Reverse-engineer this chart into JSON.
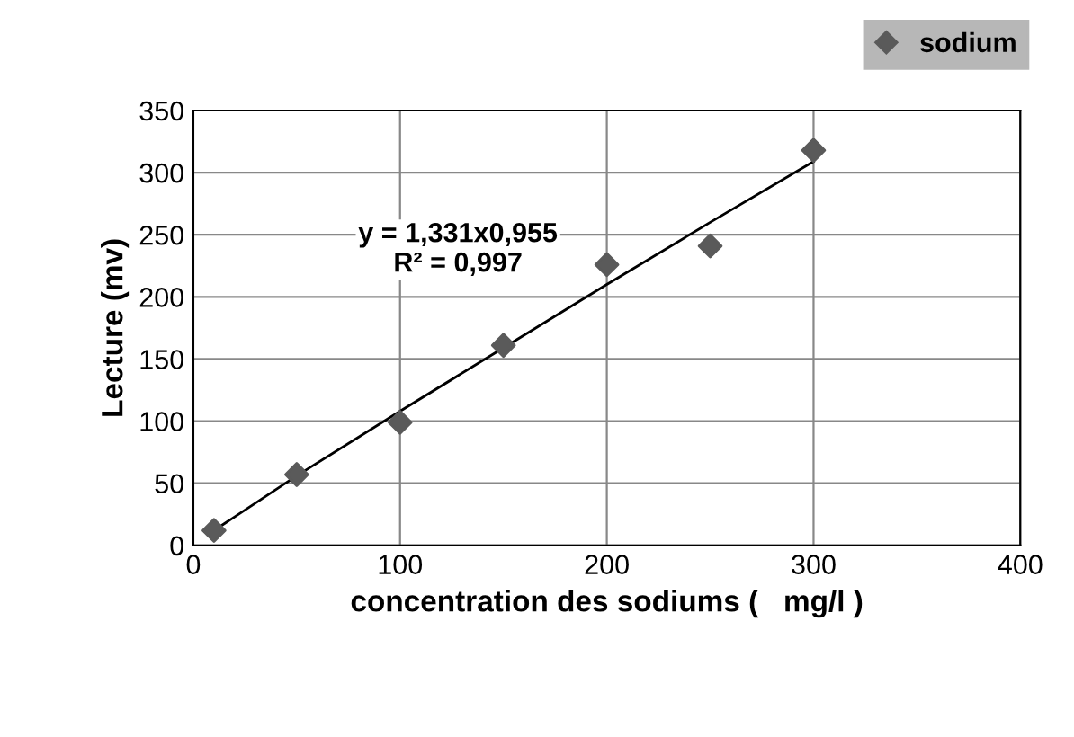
{
  "chart_data": {
    "type": "scatter",
    "xlabel": "concentration des sodiums (   mg/l )",
    "ylabel": "Lecture (mv)",
    "x": [
      10,
      50,
      100,
      150,
      200,
      250,
      300
    ],
    "series": [
      {
        "name": "sodium",
        "color": "#5a5a5a",
        "marker": "diamond",
        "values": [
          12,
          57,
          99,
          161,
          226,
          241,
          318
        ]
      },
      {
        "type": "line",
        "color": "#000000",
        "x": [
          10,
          50,
          100,
          150,
          200,
          250,
          300
        ],
        "values": [
          12,
          56,
          108,
          159,
          210,
          260,
          309
        ]
      }
    ],
    "annotations": [
      "y = 1,331x0,955\nR² = 0,997"
    ],
    "xlim": [
      0,
      400
    ],
    "xticks": [
      0,
      100,
      200,
      300,
      400
    ],
    "ylim": [
      0,
      350
    ],
    "yticks": [
      0,
      50,
      100,
      150,
      200,
      250,
      300,
      350
    ],
    "grid": true,
    "legend": "top right"
  }
}
